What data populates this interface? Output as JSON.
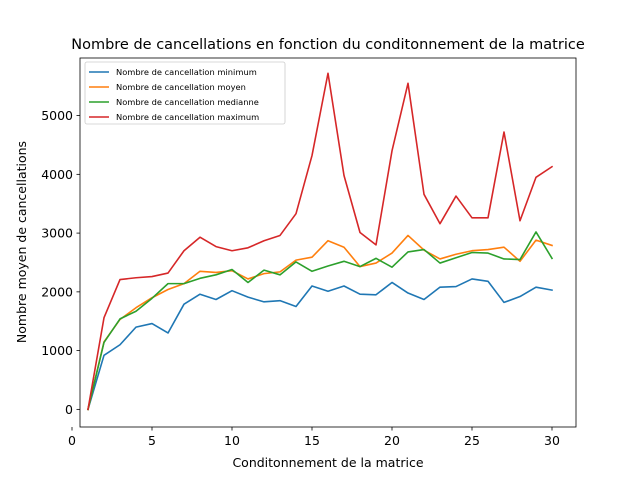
{
  "chart_data": {
    "type": "line",
    "title": "Nombre de cancellations en fonction du conditonnement de la matrice",
    "xlabel": "Conditonnement de la matrice",
    "ylabel": "Nombre moyen de cancellations",
    "xlim": [
      0.5,
      31.5
    ],
    "ylim": [
      -300,
      5980
    ],
    "xticks": [
      0,
      5,
      10,
      15,
      20,
      25,
      30
    ],
    "yticks": [
      0,
      1000,
      2000,
      3000,
      4000,
      5000
    ],
    "legend_position": "top-left",
    "grid": false,
    "x": [
      1,
      2,
      3,
      4,
      5,
      6,
      7,
      8,
      9,
      10,
      11,
      12,
      13,
      14,
      15,
      16,
      17,
      18,
      19,
      20,
      21,
      22,
      23,
      24,
      25,
      26,
      27,
      28,
      29,
      30
    ],
    "series": [
      {
        "name": "Nombre de cancellation minimum",
        "color": "#1f77b4",
        "values": [
          0,
          920,
          1100,
          1400,
          1460,
          1300,
          1790,
          1960,
          1870,
          2020,
          1910,
          1830,
          1850,
          1750,
          2100,
          2010,
          2100,
          1960,
          1950,
          2160,
          1980,
          1870,
          2080,
          2090,
          2220,
          2180,
          1820,
          1920,
          2080,
          2030
        ]
      },
      {
        "name": "Nombre de cancellation moyen",
        "color": "#ff7f0e",
        "values": [
          0,
          1150,
          1530,
          1730,
          1900,
          2040,
          2140,
          2350,
          2330,
          2360,
          2220,
          2310,
          2340,
          2540,
          2590,
          2870,
          2760,
          2430,
          2490,
          2660,
          2960,
          2710,
          2560,
          2640,
          2700,
          2720,
          2760,
          2520,
          2880,
          2790
        ]
      },
      {
        "name": "Nombre de cancellation medianne",
        "color": "#2ca02c",
        "values": [
          0,
          1140,
          1540,
          1670,
          1890,
          2140,
          2140,
          2230,
          2290,
          2380,
          2160,
          2370,
          2290,
          2510,
          2350,
          2440,
          2520,
          2430,
          2570,
          2420,
          2680,
          2720,
          2490,
          2580,
          2670,
          2660,
          2560,
          2550,
          3020,
          2570
        ]
      },
      {
        "name": "Nombre de cancellation maximum",
        "color": "#d62728",
        "values": [
          0,
          1560,
          2210,
          2240,
          2260,
          2320,
          2700,
          2930,
          2770,
          2700,
          2750,
          2870,
          2960,
          3330,
          4320,
          5720,
          3980,
          3010,
          2800,
          4400,
          5550,
          3660,
          3160,
          3630,
          3260,
          3260,
          4720,
          3210,
          3950,
          4130
        ]
      }
    ]
  }
}
